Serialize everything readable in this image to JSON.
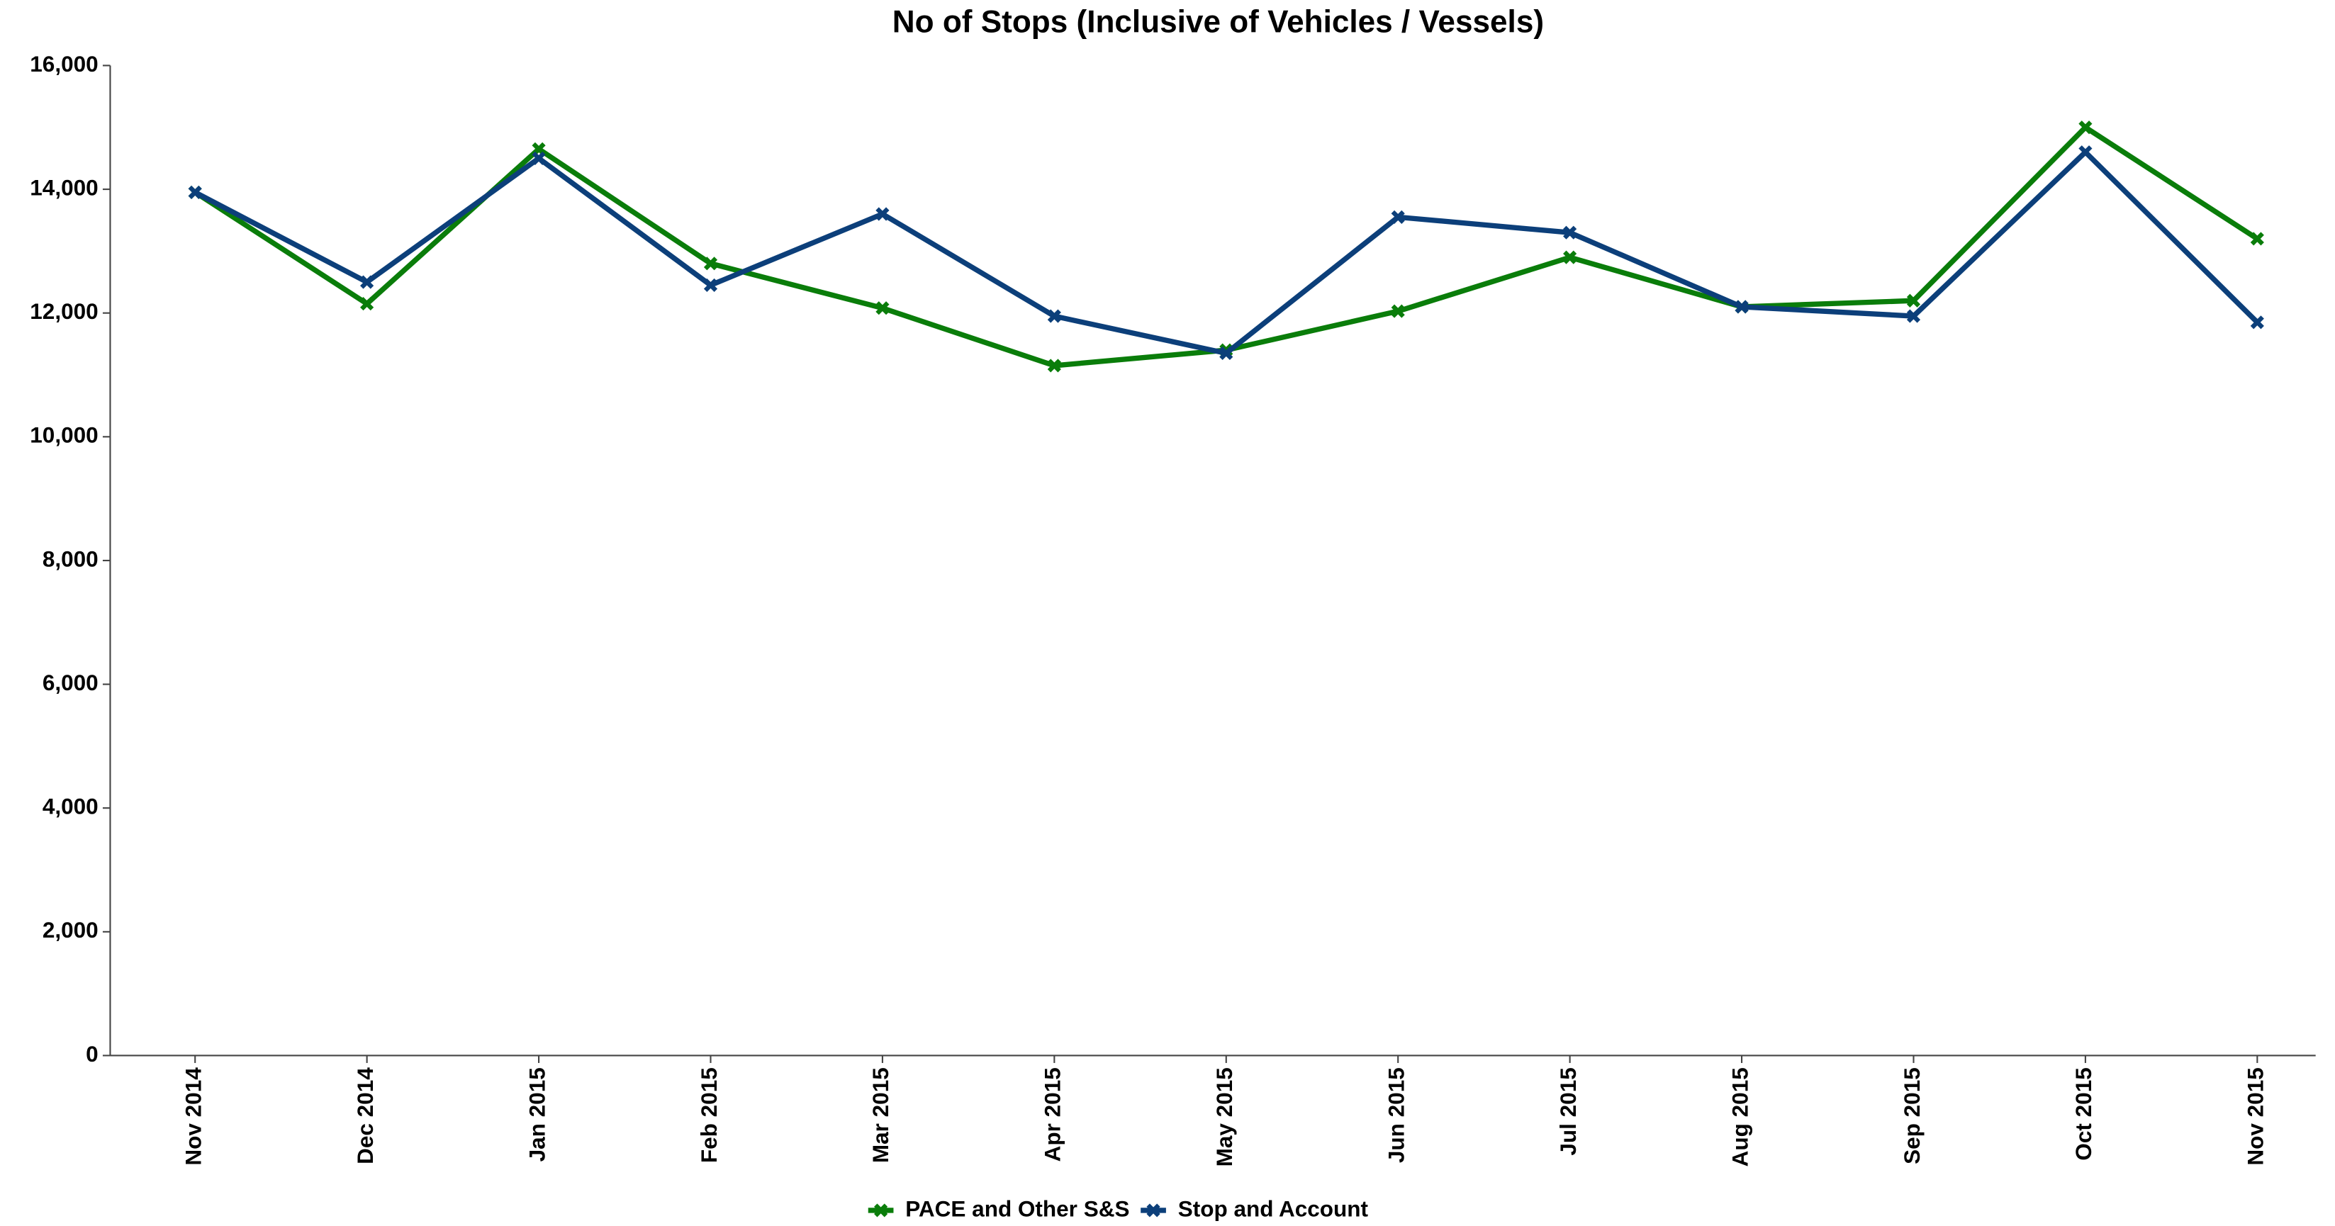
{
  "chart_data": {
    "type": "line",
    "title": "No of Stops (Inclusive of Vehicles / Vessels)",
    "categories": [
      "Nov 2014",
      "Dec 2014",
      "Jan 2015",
      "Feb 2015",
      "Mar 2015",
      "Apr 2015",
      "May 2015",
      "Jun 2015",
      "Jul 2015",
      "Aug 2015",
      "Sep 2015",
      "Oct 2015",
      "Nov 2015"
    ],
    "series": [
      {
        "name": "PACE and Other S&S",
        "color": "#0a7d0a",
        "values": [
          13950,
          12150,
          14650,
          12800,
          12080,
          11150,
          11400,
          12030,
          12900,
          12100,
          12200,
          15000,
          13200
        ]
      },
      {
        "name": "Stop and Account",
        "color": "#0c3f7a",
        "values": [
          13950,
          12500,
          14500,
          12450,
          13600,
          11950,
          11350,
          13550,
          13300,
          12100,
          11950,
          14600,
          11850
        ]
      }
    ],
    "ylim": [
      0,
      16000
    ],
    "yticks": [
      0,
      {
        "value": 2000,
        "label": "2,000"
      },
      {
        "value": 4000,
        "label": "4,000"
      },
      {
        "value": 6000,
        "label": "6,000"
      },
      {
        "value": 8000,
        "label": "8,000"
      },
      {
        "value": 10000,
        "label": "10,000"
      },
      {
        "value": 12000,
        "label": "12,000"
      },
      {
        "value": 14000,
        "label": "14,000"
      },
      {
        "value": 16000,
        "label": "16,000"
      }
    ],
    "grid": false,
    "legend": "bottom"
  }
}
